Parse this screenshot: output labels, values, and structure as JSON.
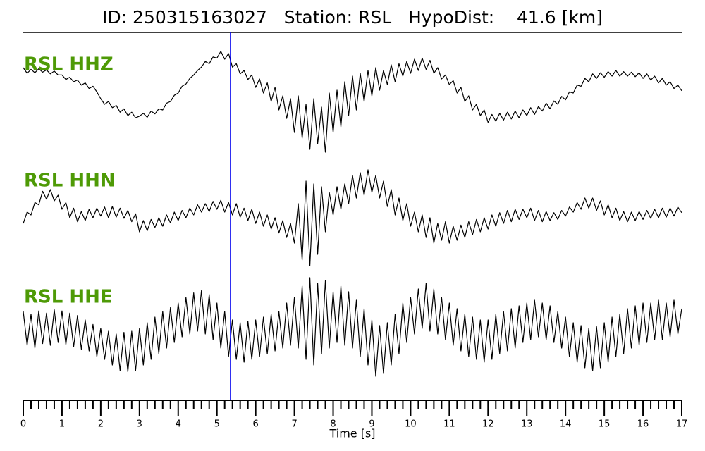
{
  "chart_data": {
    "type": "seismogram",
    "title": "ID: 250315163027   Station: RSL   HypoDist:    41.6 [km]",
    "xlabel": "Time [s]",
    "xlim": [
      0,
      17
    ],
    "xticks": [
      0,
      1,
      2,
      3,
      4,
      5,
      6,
      7,
      8,
      9,
      10,
      11,
      12,
      13,
      14,
      15,
      16,
      17
    ],
    "xminorticks": [
      0.2,
      0.4,
      0.6,
      0.8,
      1.2,
      1.4,
      1.6,
      1.8,
      2.2,
      2.4,
      2.6,
      2.8,
      3.2,
      3.4,
      3.6,
      3.8,
      4.2,
      4.4,
      4.6,
      4.8,
      5.2,
      5.4,
      5.6,
      5.8,
      6.2,
      6.4,
      6.6,
      6.8,
      7.2,
      7.4,
      7.6,
      7.8,
      8.2,
      8.4,
      8.6,
      8.8,
      9.2,
      9.4,
      9.6,
      9.8,
      10.2,
      10.4,
      10.6,
      10.8,
      11.2,
      11.4,
      11.6,
      11.8,
      12.2,
      12.4,
      12.6,
      12.8,
      13.2,
      13.4,
      13.6,
      13.8,
      14.2,
      14.4,
      14.6,
      14.8,
      15.2,
      15.4,
      15.6,
      15.8,
      16.2,
      16.4,
      16.6,
      16.8
    ],
    "ylim": [
      -1,
      1
    ],
    "label_color": "#4e9a06",
    "marker_time": 5.35,
    "marker_color": "#0000ee",
    "x": [
      0,
      0.1,
      0.2,
      0.3,
      0.4,
      0.5,
      0.6,
      0.7,
      0.8,
      0.9,
      1,
      1.1,
      1.2,
      1.3,
      1.4,
      1.5,
      1.6,
      1.7,
      1.8,
      1.9,
      2,
      2.1,
      2.2,
      2.3,
      2.4,
      2.5,
      2.6,
      2.7,
      2.8,
      2.9,
      3,
      3.1,
      3.2,
      3.3,
      3.4,
      3.5,
      3.6,
      3.7,
      3.8,
      3.9,
      4,
      4.1,
      4.2,
      4.3,
      4.4,
      4.5,
      4.6,
      4.7,
      4.8,
      4.9,
      5,
      5.1,
      5.2,
      5.3,
      5.4,
      5.5,
      5.6,
      5.7,
      5.8,
      5.9,
      6,
      6.1,
      6.2,
      6.3,
      6.4,
      6.5,
      6.6,
      6.7,
      6.8,
      6.9,
      7,
      7.1,
      7.2,
      7.3,
      7.4,
      7.5,
      7.6,
      7.7,
      7.8,
      7.9,
      8,
      8.1,
      8.2,
      8.3,
      8.4,
      8.5,
      8.6,
      8.7,
      8.8,
      8.9,
      9,
      9.1,
      9.2,
      9.3,
      9.4,
      9.5,
      9.6,
      9.7,
      9.8,
      9.9,
      10,
      10.1,
      10.2,
      10.3,
      10.4,
      10.5,
      10.6,
      10.7,
      10.8,
      10.9,
      11,
      11.1,
      11.2,
      11.3,
      11.4,
      11.5,
      11.6,
      11.7,
      11.8,
      11.9,
      12,
      12.1,
      12.2,
      12.3,
      12.4,
      12.5,
      12.6,
      12.7,
      12.8,
      12.9,
      13,
      13.1,
      13.2,
      13.3,
      13.4,
      13.5,
      13.6,
      13.7,
      13.8,
      13.9,
      14,
      14.1,
      14.2,
      14.3,
      14.4,
      14.5,
      14.6,
      14.7,
      14.8,
      14.9,
      15,
      15.1,
      15.2,
      15.3,
      15.4,
      15.5,
      15.6,
      15.7,
      15.8,
      15.9,
      16,
      16.1,
      16.2,
      16.3,
      16.4,
      16.5,
      16.6,
      16.7,
      16.8,
      16.9,
      17
    ],
    "series": [
      {
        "name": "RSL HHZ",
        "color": "#000000",
        "values": [
          0.55,
          0.45,
          0.52,
          0.46,
          0.53,
          0.47,
          0.51,
          0.44,
          0.49,
          0.42,
          0.42,
          0.34,
          0.38,
          0.3,
          0.33,
          0.24,
          0.28,
          0.18,
          0.22,
          0.12,
          0.0,
          -0.1,
          -0.05,
          -0.16,
          -0.12,
          -0.24,
          -0.18,
          -0.3,
          -0.24,
          -0.34,
          -0.31,
          -0.26,
          -0.33,
          -0.22,
          -0.27,
          -0.18,
          -0.2,
          -0.08,
          -0.05,
          0.06,
          0.1,
          0.22,
          0.26,
          0.36,
          0.42,
          0.5,
          0.56,
          0.66,
          0.62,
          0.74,
          0.72,
          0.84,
          0.7,
          0.8,
          0.56,
          0.62,
          0.44,
          0.5,
          0.34,
          0.42,
          0.2,
          0.35,
          0.1,
          0.28,
          -0.05,
          0.2,
          -0.2,
          0.05,
          -0.35,
          0.0,
          -0.6,
          0.05,
          -0.7,
          -0.1,
          -0.9,
          0.0,
          -0.8,
          -0.15,
          -0.95,
          0.1,
          -0.6,
          0.15,
          -0.5,
          0.3,
          -0.3,
          0.4,
          -0.2,
          0.45,
          -0.05,
          0.5,
          0.05,
          0.55,
          0.15,
          0.5,
          0.25,
          0.6,
          0.3,
          0.62,
          0.4,
          0.66,
          0.45,
          0.7,
          0.5,
          0.72,
          0.52,
          0.68,
          0.45,
          0.55,
          0.35,
          0.42,
          0.25,
          0.32,
          0.1,
          0.2,
          -0.05,
          0.05,
          -0.2,
          -0.1,
          -0.3,
          -0.2,
          -0.42,
          -0.28,
          -0.4,
          -0.26,
          -0.38,
          -0.24,
          -0.36,
          -0.22,
          -0.34,
          -0.2,
          -0.3,
          -0.16,
          -0.28,
          -0.14,
          -0.22,
          -0.08,
          -0.18,
          -0.04,
          -0.1,
          0.04,
          -0.02,
          0.12,
          0.1,
          0.24,
          0.22,
          0.36,
          0.3,
          0.44,
          0.36,
          0.46,
          0.38,
          0.48,
          0.4,
          0.5,
          0.4,
          0.48,
          0.4,
          0.47,
          0.39,
          0.46,
          0.36,
          0.44,
          0.33,
          0.4,
          0.28,
          0.36,
          0.24,
          0.3,
          0.18,
          0.24,
          0.14
        ]
      },
      {
        "name": "RSL HHN",
        "color": "#000000",
        "values": [
          -0.15,
          0.05,
          0.0,
          0.22,
          0.18,
          0.42,
          0.28,
          0.45,
          0.25,
          0.35,
          0.1,
          0.22,
          -0.05,
          0.12,
          -0.12,
          0.06,
          -0.1,
          0.1,
          -0.05,
          0.12,
          -0.02,
          0.14,
          -0.05,
          0.15,
          -0.04,
          0.12,
          -0.06,
          0.08,
          -0.12,
          0.02,
          -0.3,
          -0.1,
          -0.28,
          -0.08,
          -0.22,
          -0.05,
          -0.2,
          0.0,
          -0.14,
          0.05,
          -0.1,
          0.08,
          -0.05,
          0.12,
          0.0,
          0.18,
          0.05,
          0.2,
          0.06,
          0.24,
          0.1,
          0.26,
          0.05,
          0.22,
          0.0,
          0.2,
          -0.04,
          0.12,
          -0.1,
          0.1,
          -0.15,
          0.05,
          -0.2,
          0.0,
          -0.25,
          -0.05,
          -0.32,
          -0.1,
          -0.4,
          -0.15,
          -0.5,
          0.2,
          -0.8,
          0.6,
          -0.9,
          0.55,
          -0.7,
          0.5,
          -0.3,
          0.4,
          0.0,
          0.5,
          0.1,
          0.55,
          0.2,
          0.7,
          0.3,
          0.75,
          0.35,
          0.8,
          0.4,
          0.7,
          0.3,
          0.6,
          0.15,
          0.45,
          0.0,
          0.3,
          -0.1,
          0.2,
          -0.2,
          0.05,
          -0.3,
          0.0,
          -0.4,
          -0.05,
          -0.5,
          -0.15,
          -0.45,
          -0.12,
          -0.5,
          -0.2,
          -0.45,
          -0.18,
          -0.4,
          -0.12,
          -0.35,
          -0.08,
          -0.3,
          -0.05,
          -0.25,
          0.0,
          -0.2,
          0.04,
          -0.15,
          0.08,
          -0.12,
          0.1,
          -0.08,
          0.1,
          -0.05,
          0.12,
          -0.1,
          0.08,
          -0.12,
          0.06,
          -0.1,
          0.04,
          -0.08,
          0.08,
          -0.02,
          0.14,
          0.05,
          0.22,
          0.1,
          0.3,
          0.12,
          0.3,
          0.08,
          0.25,
          0.0,
          0.18,
          -0.05,
          0.12,
          -0.1,
          0.06,
          -0.12,
          0.05,
          -0.1,
          0.06,
          -0.08,
          0.08,
          -0.06,
          0.1,
          -0.05,
          0.12,
          -0.04,
          0.12,
          -0.02,
          0.14,
          0.04
        ]
      },
      {
        "name": "RSL HHE",
        "color": "#000000",
        "values": [
          0.35,
          -0.25,
          0.3,
          -0.3,
          0.36,
          -0.22,
          0.32,
          -0.25,
          0.38,
          -0.2,
          0.36,
          -0.24,
          0.32,
          -0.28,
          0.28,
          -0.32,
          0.2,
          -0.35,
          0.12,
          -0.45,
          0.05,
          -0.5,
          0.0,
          -0.6,
          -0.05,
          -0.7,
          -0.02,
          -0.72,
          0.0,
          -0.7,
          0.05,
          -0.6,
          0.15,
          -0.5,
          0.25,
          -0.4,
          0.35,
          -0.3,
          0.42,
          -0.2,
          0.5,
          -0.1,
          0.6,
          -0.05,
          0.68,
          0.0,
          0.72,
          -0.05,
          0.65,
          -0.15,
          0.5,
          -0.3,
          0.35,
          -0.45,
          0.2,
          -0.5,
          0.15,
          -0.55,
          0.18,
          -0.5,
          0.2,
          -0.45,
          0.25,
          -0.4,
          0.3,
          -0.35,
          0.35,
          -0.3,
          0.5,
          -0.25,
          0.6,
          -0.3,
          0.8,
          -0.5,
          0.95,
          -0.6,
          0.85,
          -0.4,
          0.9,
          -0.3,
          0.7,
          -0.2,
          0.8,
          -0.25,
          0.7,
          -0.3,
          0.55,
          -0.45,
          0.4,
          -0.6,
          0.2,
          -0.8,
          0.1,
          -0.75,
          0.15,
          -0.6,
          0.3,
          -0.4,
          0.5,
          -0.2,
          0.6,
          -0.05,
          0.75,
          0.05,
          0.85,
          0.0,
          0.75,
          -0.05,
          0.6,
          -0.15,
          0.5,
          -0.25,
          0.4,
          -0.35,
          0.3,
          -0.45,
          0.25,
          -0.5,
          0.2,
          -0.55,
          0.2,
          -0.5,
          0.3,
          -0.4,
          0.35,
          -0.35,
          0.4,
          -0.3,
          0.45,
          -0.2,
          0.5,
          -0.15,
          0.55,
          -0.1,
          0.5,
          -0.15,
          0.45,
          -0.2,
          0.35,
          -0.3,
          0.25,
          -0.45,
          0.15,
          -0.55,
          0.1,
          -0.65,
          0.05,
          -0.7,
          0.08,
          -0.65,
          0.15,
          -0.55,
          0.25,
          -0.45,
          0.3,
          -0.4,
          0.4,
          -0.3,
          0.45,
          -0.25,
          0.5,
          -0.2,
          0.5,
          -0.15,
          0.55,
          -0.15,
          0.5,
          -0.1,
          0.55,
          -0.05,
          0.4
        ]
      }
    ]
  }
}
